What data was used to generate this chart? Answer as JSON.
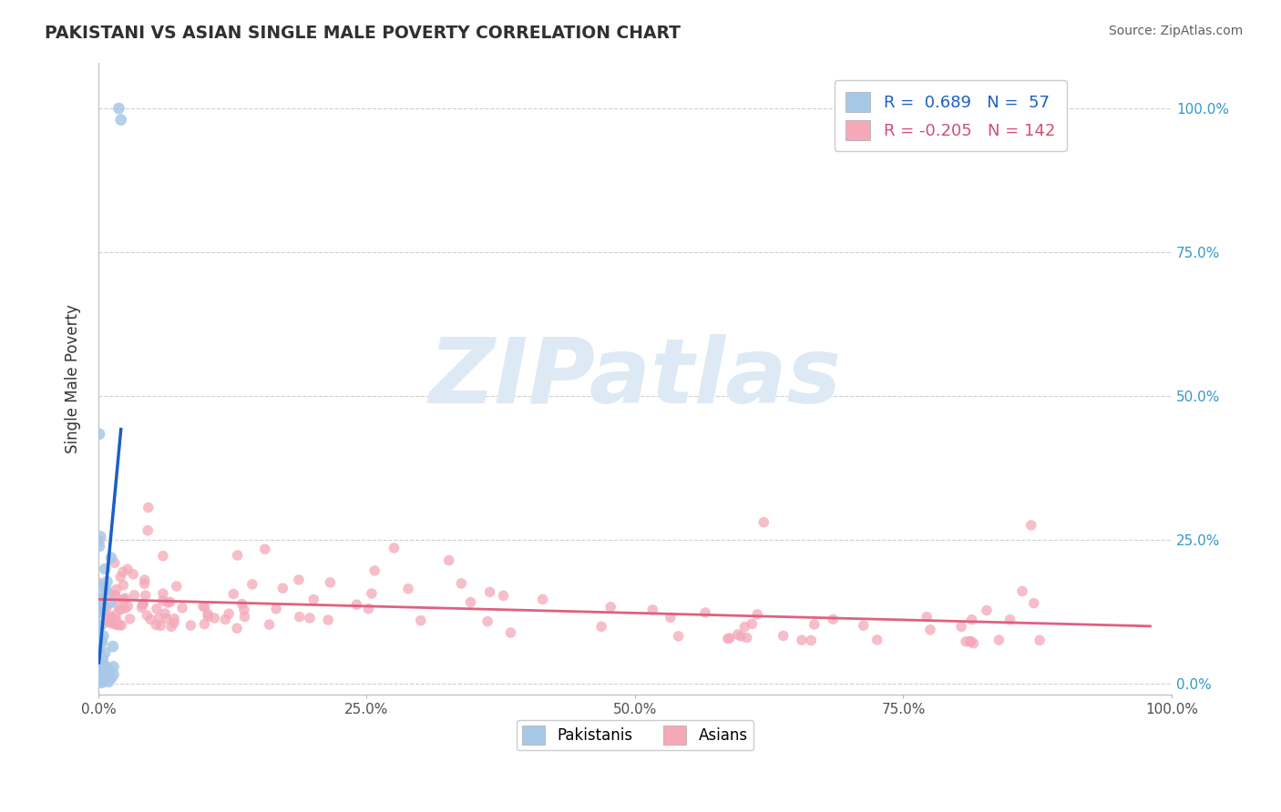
{
  "title": "PAKISTANI VS ASIAN SINGLE MALE POVERTY CORRELATION CHART",
  "source": "Source: ZipAtlas.com",
  "ylabel": "Single Male Poverty",
  "xlim": [
    0,
    1.0
  ],
  "ylim": [
    -0.02,
    1.08
  ],
  "xticks": [
    0.0,
    0.25,
    0.5,
    0.75,
    1.0
  ],
  "xticklabels": [
    "0.0%",
    "25.0%",
    "50.0%",
    "75.0%",
    "100.0%"
  ],
  "ytick_positions": [
    0.0,
    0.25,
    0.5,
    0.75,
    1.0
  ],
  "yticklabels_right": [
    "0.0%",
    "25.0%",
    "50.0%",
    "75.0%",
    "100.0%"
  ],
  "pakistanis_R": 0.689,
  "pakistanis_N": 57,
  "asians_R": -0.205,
  "asians_N": 142,
  "color_pak_scatter": "#a8c8e8",
  "color_pak_line": "#1a5fc8",
  "color_asi_scatter": "#f4a8b8",
  "color_asi_line": "#e06080",
  "watermark_text": "ZIPatlas",
  "watermark_color": "#ddeaf5",
  "bg_color": "#ffffff",
  "grid_color": "#d0d0d0",
  "title_color": "#303030",
  "source_color": "#606060",
  "tick_color": "#505050"
}
